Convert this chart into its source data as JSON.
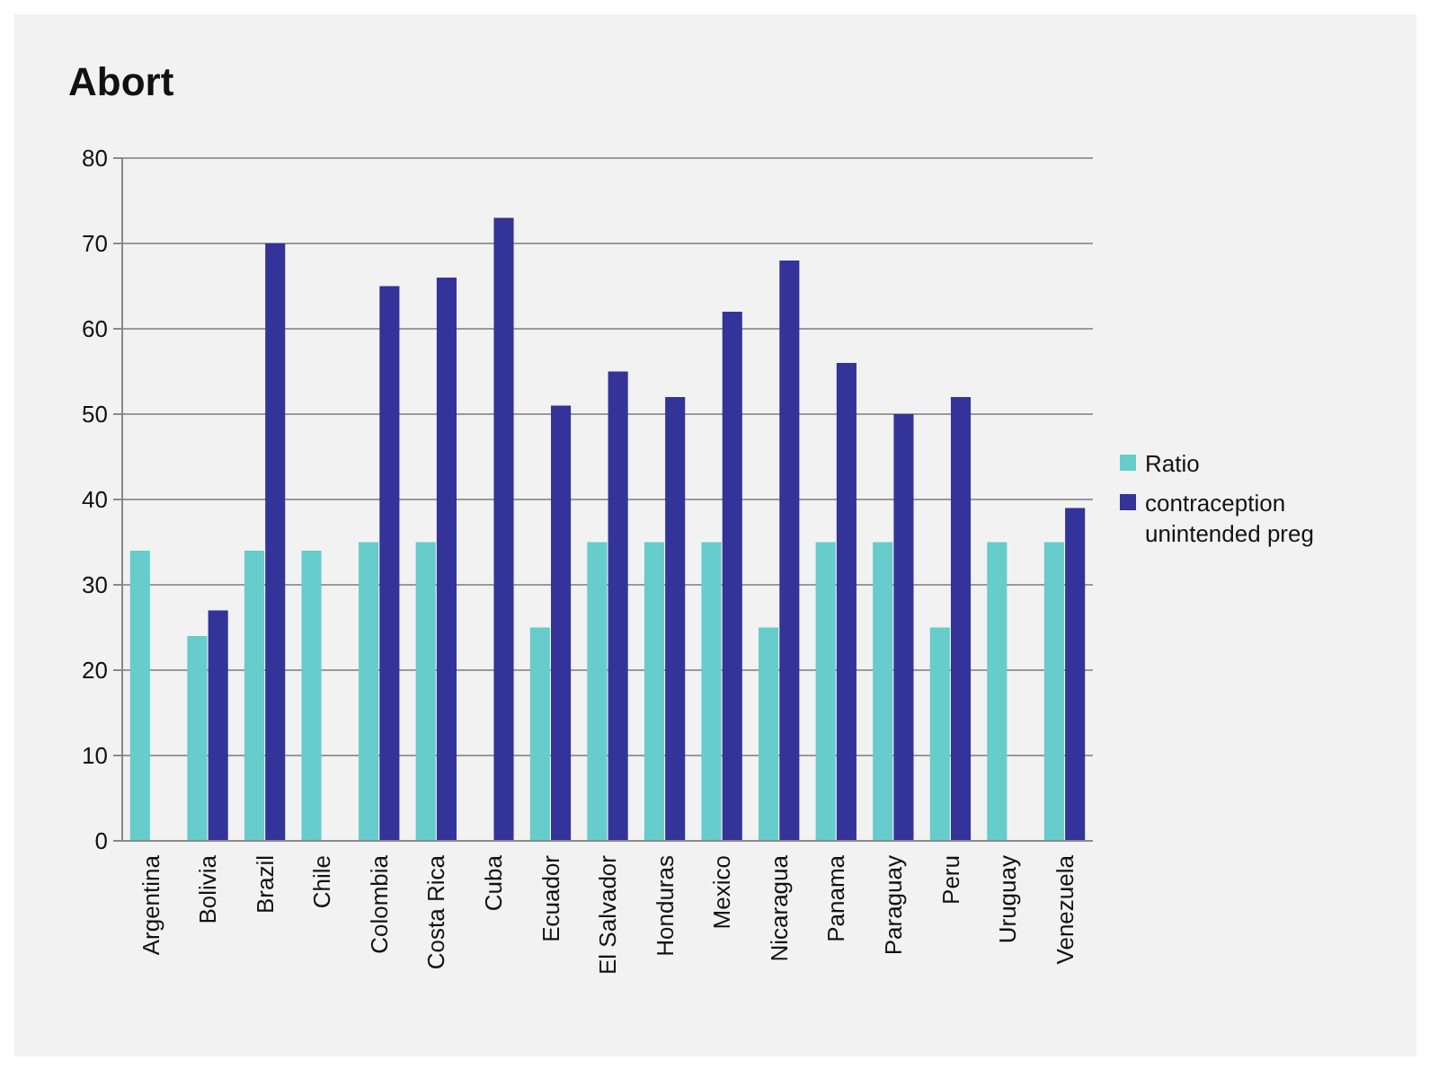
{
  "chart_data": {
    "type": "bar",
    "title": "Abort",
    "categories": [
      "Argentina",
      "Bolivia",
      "Brazil",
      "Chile",
      "Colombia",
      "Costa Rica",
      "Cuba",
      "Ecuador",
      "El Salvador",
      "Honduras",
      "Mexico",
      "Nicaragua",
      "Panama",
      "Paraguay",
      "Peru",
      "Uruguay",
      "Venezuela"
    ],
    "series": [
      {
        "name": "Ratio",
        "color": "#66cccc",
        "values": [
          34,
          24,
          34,
          34,
          35,
          35,
          null,
          25,
          35,
          35,
          35,
          25,
          35,
          35,
          25,
          35,
          35
        ]
      },
      {
        "name": "contraception unintended preg",
        "color": "#33339a",
        "values": [
          null,
          27,
          70,
          null,
          65,
          66,
          73,
          51,
          55,
          52,
          62,
          68,
          56,
          50,
          52,
          null,
          39
        ]
      }
    ],
    "ylim": [
      0,
      80
    ],
    "yticks": [
      0,
      10,
      20,
      30,
      40,
      50,
      60,
      70,
      80
    ],
    "grid": "y",
    "legend": "right"
  }
}
